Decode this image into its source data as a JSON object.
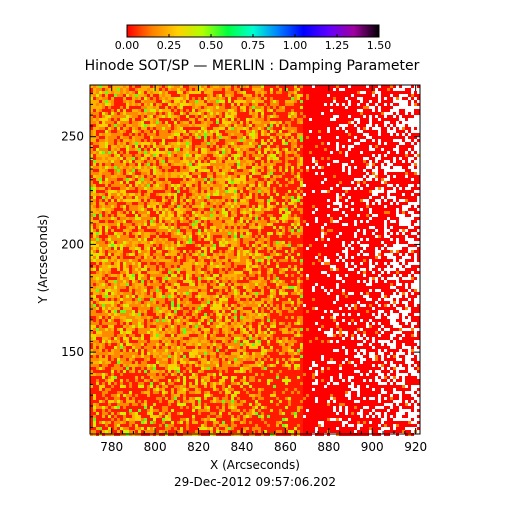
{
  "chart_data": {
    "type": "heatmap",
    "title": "Hinode SOT/SP — MERLIN : Damping Parameter",
    "xlabel": "X (Arcseconds)",
    "ylabel": "Y (Arcseconds)",
    "timestamp": "29-Dec-2012 09:57:06.202",
    "xlim": [
      770,
      922
    ],
    "ylim": [
      112,
      274
    ],
    "x_ticks": [
      780,
      800,
      820,
      840,
      860,
      880,
      900,
      920
    ],
    "x_tick_labels": [
      "780",
      "800",
      "820",
      "840",
      "860",
      "880",
      "900",
      "920"
    ],
    "y_ticks": [
      150,
      200,
      250
    ],
    "y_tick_labels": [
      "150",
      "200",
      "250"
    ],
    "colorbar": {
      "min": 0.0,
      "max": 1.5,
      "ticks": [
        0.0,
        0.25,
        0.5,
        0.75,
        1.0,
        1.25,
        1.5
      ],
      "tick_labels": [
        "0.00",
        "0.25",
        "0.50",
        "0.75",
        "1.00",
        "1.25",
        "1.50"
      ],
      "colors": [
        "#ff0000",
        "#ff8000",
        "#ffd000",
        "#b0ff00",
        "#00ff40",
        "#00ffd0",
        "#0080ff",
        "#0000ff",
        "#6000ff",
        "#a000a0",
        "#000000"
      ]
    },
    "field_description_values": {
      "left_region_typical": 0.25,
      "right_region_typical": 0.0,
      "transition_x": 868
    },
    "grid": false
  }
}
